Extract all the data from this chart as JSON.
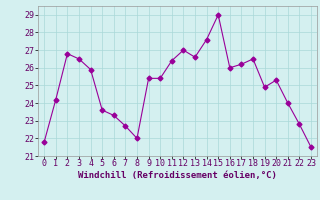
{
  "x": [
    0,
    1,
    2,
    3,
    4,
    5,
    6,
    7,
    8,
    9,
    10,
    11,
    12,
    13,
    14,
    15,
    16,
    17,
    18,
    19,
    20,
    21,
    22,
    23
  ],
  "y": [
    21.8,
    24.2,
    26.8,
    26.5,
    25.9,
    23.6,
    23.3,
    22.7,
    22.0,
    25.4,
    25.4,
    26.4,
    27.0,
    26.6,
    27.6,
    29.0,
    26.0,
    26.2,
    26.5,
    24.9,
    25.3,
    24.0,
    22.8,
    21.5
  ],
  "line_color": "#990099",
  "marker": "D",
  "marker_size": 2.5,
  "bg_color": "#d4f0f0",
  "grid_color": "#aad8d8",
  "xlabel": "Windchill (Refroidissement éolien,°C)",
  "xlabel_fontsize": 6.5,
  "tick_fontsize": 6,
  "ylim": [
    21,
    29.5
  ],
  "yticks": [
    21,
    22,
    23,
    24,
    25,
    26,
    27,
    28,
    29
  ],
  "spine_color": "#999999"
}
